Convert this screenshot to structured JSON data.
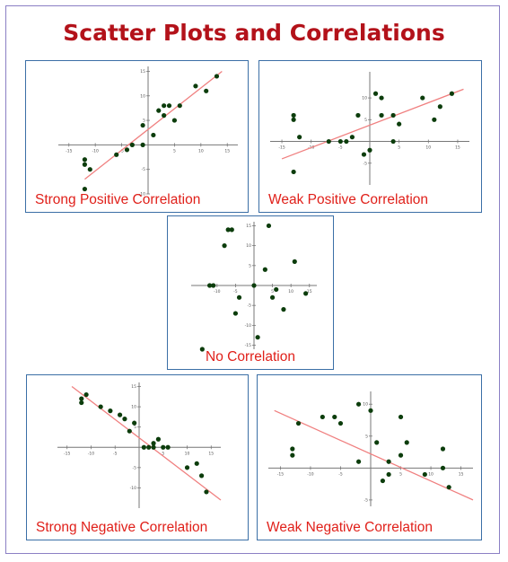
{
  "page": {
    "title": "Scatter Plots and Correlations"
  },
  "colors": {
    "title": "#b3121a",
    "caption": "#e0201a",
    "border": "#3b6fa6",
    "dot": "#0c3d0c",
    "trend": "#f08080"
  },
  "chart_data": [
    {
      "type": "scatter",
      "title": "Strong Positive Correlation",
      "xlim": [
        -17,
        17
      ],
      "ylim": [
        -10,
        16
      ],
      "xticks": [
        -15,
        -10,
        -5,
        5,
        10,
        15
      ],
      "yticks": [
        -10,
        -5,
        5,
        10,
        15
      ],
      "trend": [
        [
          -12,
          -7
        ],
        [
          14,
          15
        ]
      ],
      "points": [
        [
          -12,
          -3
        ],
        [
          -12,
          -4
        ],
        [
          -11,
          -5
        ],
        [
          -12,
          -9
        ],
        [
          -6,
          -2
        ],
        [
          -4,
          -1
        ],
        [
          -3,
          0
        ],
        [
          -1,
          0
        ],
        [
          -1,
          4
        ],
        [
          1,
          2
        ],
        [
          2,
          7
        ],
        [
          3,
          8
        ],
        [
          3,
          6
        ],
        [
          4,
          8
        ],
        [
          5,
          5
        ],
        [
          6,
          8
        ],
        [
          9,
          12
        ],
        [
          11,
          11
        ],
        [
          13,
          14
        ]
      ]
    },
    {
      "type": "scatter",
      "title": "Weak Positive Correlation",
      "xlim": [
        -17,
        17
      ],
      "ylim": [
        -10,
        16
      ],
      "xticks": [
        -15,
        -10,
        -5,
        5,
        10,
        15
      ],
      "yticks": [
        -5,
        5,
        10
      ],
      "trend": [
        [
          -15,
          -4
        ],
        [
          16,
          12
        ]
      ],
      "points": [
        [
          -13,
          6
        ],
        [
          -13,
          5
        ],
        [
          -12,
          1
        ],
        [
          -13,
          -7
        ],
        [
          -7,
          0
        ],
        [
          -5,
          0
        ],
        [
          -4,
          0
        ],
        [
          -3,
          1
        ],
        [
          -2,
          6
        ],
        [
          -1,
          -3
        ],
        [
          0,
          -2
        ],
        [
          1,
          11
        ],
        [
          2,
          10
        ],
        [
          2,
          6
        ],
        [
          4,
          6
        ],
        [
          4,
          0
        ],
        [
          5,
          4
        ],
        [
          9,
          10
        ],
        [
          11,
          5
        ],
        [
          12,
          8
        ],
        [
          14,
          11
        ]
      ]
    },
    {
      "type": "scatter",
      "title": "No Correlation",
      "xlim": [
        -17,
        17
      ],
      "ylim": [
        -16,
        16
      ],
      "xticks": [
        -10,
        -5,
        5,
        10,
        15
      ],
      "yticks": [
        -15,
        -10,
        -5,
        5,
        10,
        15
      ],
      "points": [
        [
          -12,
          0
        ],
        [
          -11,
          0
        ],
        [
          -8,
          10
        ],
        [
          -7,
          14
        ],
        [
          -6,
          14
        ],
        [
          -5,
          -7
        ],
        [
          -4,
          -3
        ],
        [
          0,
          0
        ],
        [
          1,
          -13
        ],
        [
          3,
          4
        ],
        [
          4,
          15
        ],
        [
          5,
          -3
        ],
        [
          6,
          -1
        ],
        [
          8,
          -6
        ],
        [
          11,
          6
        ],
        [
          14,
          -2
        ],
        [
          -14,
          -16
        ]
      ]
    },
    {
      "type": "scatter",
      "title": "Strong Negative Correlation",
      "xlim": [
        -17,
        17
      ],
      "ylim": [
        -15,
        16
      ],
      "xticks": [
        -15,
        -10,
        -5,
        5,
        10,
        15
      ],
      "yticks": [
        -10,
        -5,
        5,
        10,
        15
      ],
      "trend": [
        [
          -14,
          15
        ],
        [
          17,
          -13
        ]
      ],
      "points": [
        [
          -12,
          12
        ],
        [
          -12,
          11
        ],
        [
          -11,
          13
        ],
        [
          -8,
          10
        ],
        [
          -6,
          9
        ],
        [
          -4,
          8
        ],
        [
          -3,
          7
        ],
        [
          -2,
          4
        ],
        [
          -1,
          6
        ],
        [
          1,
          0
        ],
        [
          2,
          0
        ],
        [
          3,
          1
        ],
        [
          3,
          0
        ],
        [
          4,
          2
        ],
        [
          5,
          0
        ],
        [
          6,
          0
        ],
        [
          10,
          -5
        ],
        [
          12,
          -4
        ],
        [
          13,
          -7
        ],
        [
          14,
          -11
        ]
      ]
    },
    {
      "type": "scatter",
      "title": "Weak Negative Correlation",
      "xlim": [
        -17,
        17
      ],
      "ylim": [
        -6,
        12
      ],
      "xticks": [
        -15,
        -10,
        -5,
        5,
        10,
        15
      ],
      "yticks": [
        -5,
        5,
        10
      ],
      "trend": [
        [
          -16,
          9
        ],
        [
          17,
          -5
        ]
      ],
      "points": [
        [
          -13,
          2
        ],
        [
          -13,
          3
        ],
        [
          -12,
          7
        ],
        [
          -8,
          8
        ],
        [
          -6,
          8
        ],
        [
          -5,
          7
        ],
        [
          -2,
          10
        ],
        [
          -2,
          1
        ],
        [
          0,
          9
        ],
        [
          1,
          4
        ],
        [
          2,
          -2
        ],
        [
          3,
          -1
        ],
        [
          3,
          1
        ],
        [
          5,
          8
        ],
        [
          6,
          4
        ],
        [
          5,
          2
        ],
        [
          9,
          -1
        ],
        [
          12,
          3
        ],
        [
          12,
          0
        ],
        [
          13,
          -3
        ]
      ]
    }
  ]
}
